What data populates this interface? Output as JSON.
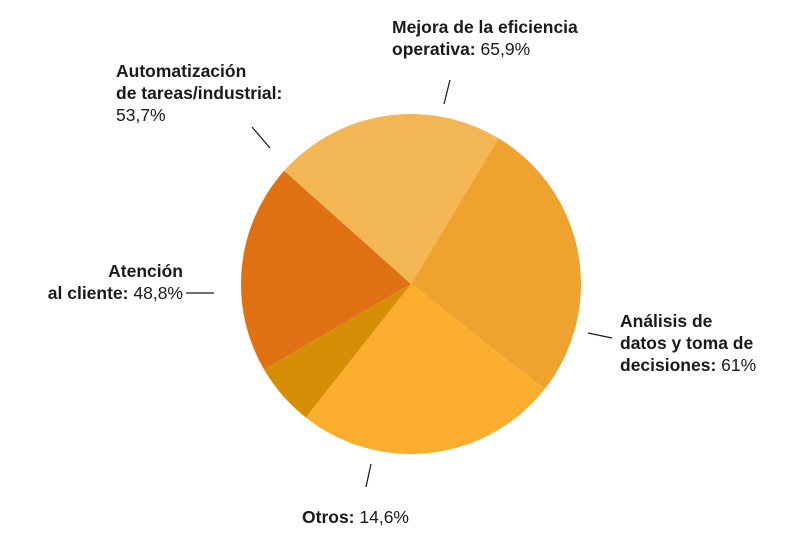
{
  "chart_data": {
    "type": "pie",
    "title": "",
    "slices": [
      {
        "label": "Mejora de la eficiencia operativa",
        "value_text": "65,9%",
        "value": 65.9,
        "color": "#EFA22D"
      },
      {
        "label": "Análisis de datos y toma de decisiones",
        "value_text": "61%",
        "value": 61,
        "color": "#FBAD2E"
      },
      {
        "label": "Otros",
        "value_text": "14,6%",
        "value": 14.6,
        "color": "#D78E07"
      },
      {
        "label": "Atención al cliente",
        "value_text": "48,8%",
        "value": 48.8,
        "color": "#DF7114"
      },
      {
        "label": "Automatización de tareas/industrial",
        "value_text": "53,7%",
        "value": 53.7,
        "color": "#F2B655"
      }
    ],
    "legend": "none"
  },
  "labels": {
    "eficiencia": {
      "line1": "Mejora de la eficiencia",
      "line2": "operativa:",
      "value": "65,9%"
    },
    "analisis": {
      "line1": "Análisis de",
      "line2": "datos y toma de",
      "line3": "decisiones:",
      "value": "61%"
    },
    "otros": {
      "line1": "Otros:",
      "value": "14,6%"
    },
    "atencion": {
      "line1": "Atención",
      "line2": "al cliente:",
      "value": "48,8%"
    },
    "automatizacion": {
      "line1": "Automatización",
      "line2": "de tareas/industrial:",
      "value": "53,7%"
    }
  }
}
